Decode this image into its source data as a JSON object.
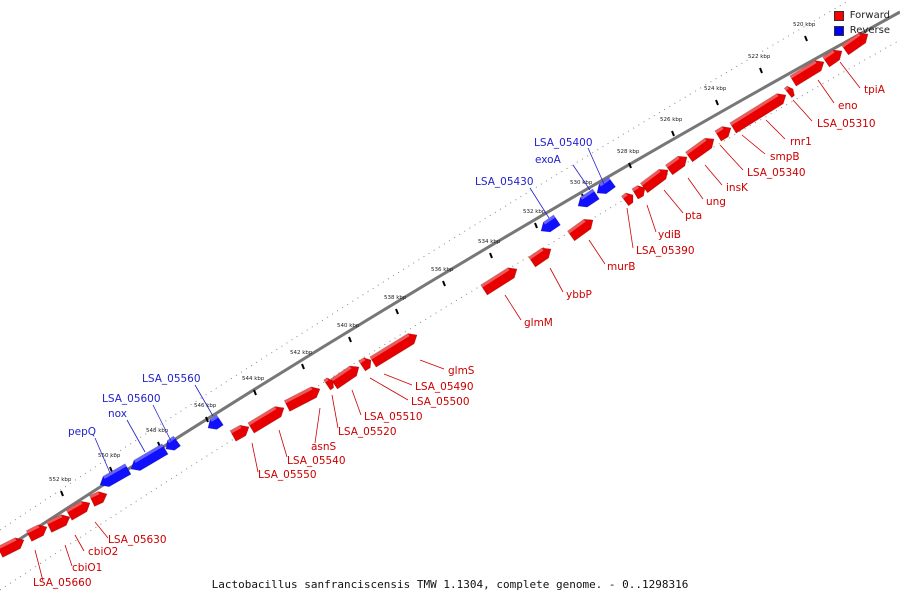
{
  "caption": "Lactobacillus sanfranciscensis TMW 1.1304, complete genome. - 0..1298316",
  "legend": [
    {
      "label": "Forward",
      "color": "#ff0000"
    },
    {
      "label": "Reverse",
      "color": "#0000ff"
    }
  ],
  "colors": {
    "forward": "#e80000",
    "reverse": "#1010ff",
    "forward_label": "#cc0000",
    "reverse_label": "#2222cc"
  },
  "ticks": [
    "520 kbp",
    "522 kbp",
    "524 kbp",
    "526 kbp",
    "528 kbp",
    "530 kbp",
    "532 kbp",
    "534 kbp",
    "536 kbp",
    "538 kbp",
    "540 kbp",
    "542 kbp",
    "544 kbp",
    "546 kbp",
    "548 kbp",
    "550 kbp",
    "552 kbp"
  ],
  "genes": {
    "reverse": [
      {
        "label": "LSA_05400"
      },
      {
        "label": "exoA"
      },
      {
        "label": "LSA_05430"
      },
      {
        "label": "LSA_05560"
      },
      {
        "label": "LSA_05600"
      },
      {
        "label": "nox"
      },
      {
        "label": "pepQ"
      }
    ],
    "forward": [
      {
        "label": "tpiA"
      },
      {
        "label": "eno"
      },
      {
        "label": "LSA_05310"
      },
      {
        "label": "rnr1"
      },
      {
        "label": "smpB"
      },
      {
        "label": "LSA_05340"
      },
      {
        "label": "insK"
      },
      {
        "label": "ung"
      },
      {
        "label": "pta"
      },
      {
        "label": "ydiB"
      },
      {
        "label": "LSA_05390"
      },
      {
        "label": "murB"
      },
      {
        "label": "ybbP"
      },
      {
        "label": "glmM"
      },
      {
        "label": "glmS"
      },
      {
        "label": "LSA_05490"
      },
      {
        "label": "LSA_05500"
      },
      {
        "label": "LSA_05510"
      },
      {
        "label": "LSA_05520"
      },
      {
        "label": "asnS"
      },
      {
        "label": "LSA_05540"
      },
      {
        "label": "LSA_05550"
      },
      {
        "label": "LSA_05630"
      },
      {
        "label": "cbiO2"
      },
      {
        "label": "cbiO1"
      },
      {
        "label": "LSA_05660"
      }
    ]
  }
}
